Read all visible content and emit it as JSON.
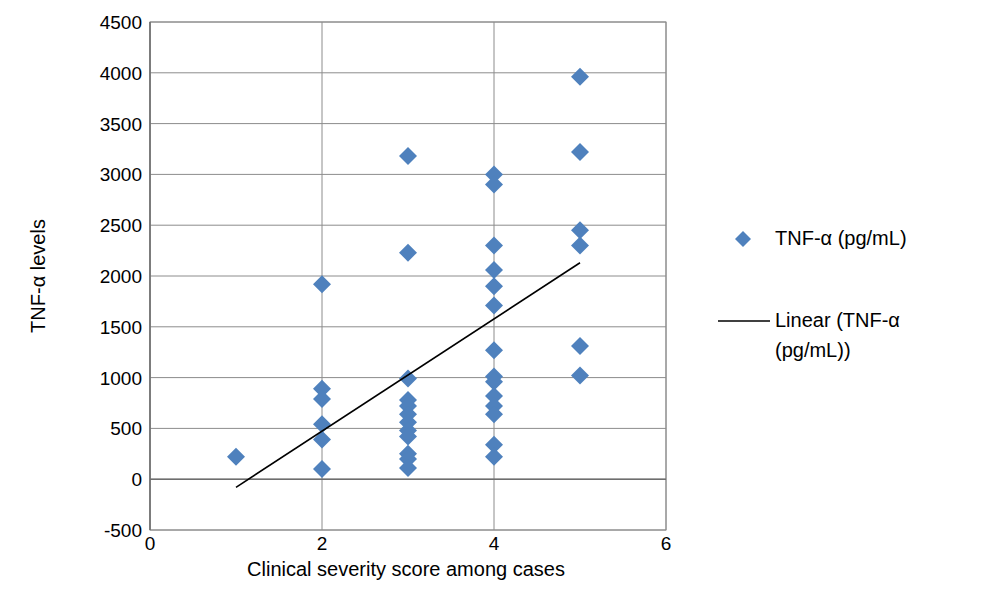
{
  "chart_data": {
    "type": "scatter",
    "x_label": "Clinical severity score among cases",
    "y_label": "TNF-α levels",
    "xlim": [
      0,
      6
    ],
    "xticks": [
      0,
      2,
      4,
      6
    ],
    "ylim": [
      -500,
      4500
    ],
    "yticks": [
      -500,
      0,
      500,
      1000,
      1500,
      2000,
      2500,
      3000,
      3500,
      4000,
      4500
    ],
    "grid": true,
    "legend": "right",
    "series": [
      {
        "name": "TNF-α (pg/mL)",
        "type": "scatter",
        "marker": "diamond",
        "color": "#4f81bd",
        "x": [
          1,
          2,
          2,
          2,
          2,
          2,
          2,
          3,
          3,
          3,
          3,
          3,
          3,
          3,
          3,
          3,
          3,
          3,
          3,
          4,
          4,
          4,
          4,
          4,
          4,
          4,
          4,
          4,
          4,
          4,
          4,
          4,
          4,
          5,
          5,
          5,
          5,
          5,
          5
        ],
        "values": [
          220,
          1920,
          890,
          790,
          540,
          390,
          100,
          3180,
          2230,
          990,
          780,
          720,
          640,
          560,
          480,
          420,
          250,
          200,
          110,
          3000,
          2900,
          2300,
          2060,
          1900,
          1710,
          1270,
          1010,
          960,
          820,
          720,
          640,
          340,
          220,
          3960,
          3220,
          2450,
          2300,
          1310,
          1020
        ]
      },
      {
        "name": "Linear (TNF-α (pg/mL))",
        "type": "line",
        "line_style": "solid",
        "color": "#000000",
        "x": [
          1,
          5
        ],
        "values": [
          -80,
          2130
        ]
      }
    ]
  }
}
